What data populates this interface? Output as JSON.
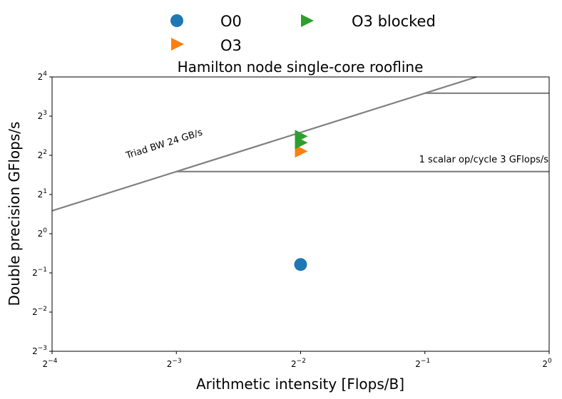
{
  "chart_data": {
    "type": "scatter",
    "title": "Hamilton node single-core roofline",
    "xlabel": "Arithmetic intensity [Flops/B]",
    "ylabel": "Double precision GFlops/s",
    "xscale": "log2",
    "yscale": "log2",
    "xlim": [
      0.0625,
      1
    ],
    "ylim": [
      0.125,
      16
    ],
    "x_ticks": [
      {
        "value": 0.0625,
        "base": "2",
        "exp": "−4"
      },
      {
        "value": 0.125,
        "base": "2",
        "exp": "−3"
      },
      {
        "value": 0.25,
        "base": "2",
        "exp": "−2"
      },
      {
        "value": 0.5,
        "base": "2",
        "exp": "−1"
      },
      {
        "value": 1,
        "base": "2",
        "exp": "0"
      }
    ],
    "y_ticks": [
      {
        "value": 0.125,
        "base": "2",
        "exp": "−3"
      },
      {
        "value": 0.25,
        "base": "2",
        "exp": "−2"
      },
      {
        "value": 0.5,
        "base": "2",
        "exp": "−1"
      },
      {
        "value": 1,
        "base": "2",
        "exp": "0"
      },
      {
        "value": 2,
        "base": "2",
        "exp": "1"
      },
      {
        "value": 4,
        "base": "2",
        "exp": "2"
      },
      {
        "value": 8,
        "base": "2",
        "exp": "3"
      },
      {
        "value": 16,
        "base": "2",
        "exp": "4"
      }
    ],
    "grid": false,
    "legend_placement": "top-center, above plot",
    "roofline": {
      "color": "#808080",
      "bandwidth": {
        "label": "Triad BW 24 GB/s",
        "gbs": 24
      },
      "ceilings": [
        {
          "label": "1 scalar op/cycle 3 GFlops/s",
          "gflops": 3,
          "labeled": true
        },
        {
          "label": "",
          "gflops": 12,
          "labeled": false
        }
      ]
    },
    "series": [
      {
        "name": "O0",
        "marker": "circle",
        "color": "#1f77b4",
        "points": [
          {
            "x": 0.25,
            "y": 0.58
          }
        ]
      },
      {
        "name": "O3",
        "marker": "triangle-right",
        "color": "#ff7f0e",
        "points": [
          {
            "x": 0.25,
            "y": 4.3
          }
        ]
      },
      {
        "name": "O3 blocked",
        "marker": "triangle-right",
        "color": "#2ca02c",
        "points": [
          {
            "x": 0.25,
            "y": 5.0
          },
          {
            "x": 0.25,
            "y": 5.6
          }
        ]
      }
    ]
  }
}
